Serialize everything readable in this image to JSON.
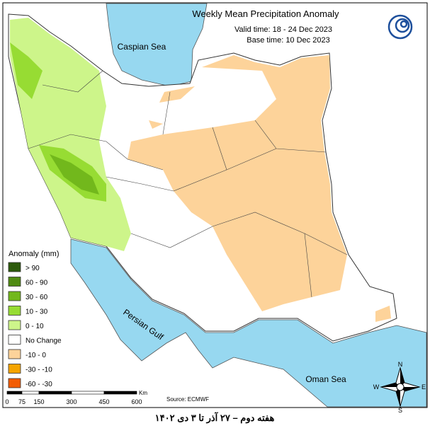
{
  "header": {
    "title": "Weekly Mean Precipitation Anomaly",
    "valid_time": "Valid time: 18 - 24 Dec 2023",
    "base_time": "Base time: 10 Dec 2023"
  },
  "map": {
    "caspian_sea": "Caspian Sea",
    "persian_gulf": "Persian Gulf",
    "oman_sea": "Oman Sea",
    "source": "Source: ECMWF"
  },
  "legend": {
    "title": "Anomaly (mm)",
    "items": [
      {
        "label": "> 90",
        "color": "#2d5a0c"
      },
      {
        "label": "60 - 90",
        "color": "#4f8a12"
      },
      {
        "label": "30 - 60",
        "color": "#72b81c"
      },
      {
        "label": "10 - 30",
        "color": "#97dc33"
      },
      {
        "label": "0 - 10",
        "color": "#cdf58a"
      },
      {
        "label": "No Change",
        "color": "#ffffff"
      },
      {
        "label": "-10 - 0",
        "color": "#fdd39a"
      },
      {
        "label": "-30 - -10",
        "color": "#f5a400"
      },
      {
        "label": "-60 - -30",
        "color": "#f25c05"
      }
    ]
  },
  "scale_bar": {
    "labels": [
      "0",
      "75",
      "150",
      "300",
      "450",
      "600"
    ],
    "unit": "Km"
  },
  "compass": {
    "n": "N",
    "s": "S",
    "e": "E",
    "w": "W"
  },
  "caption": "هفته دوم – ۲۷ آذر تا ۳ دی ۱۴۰۲"
}
